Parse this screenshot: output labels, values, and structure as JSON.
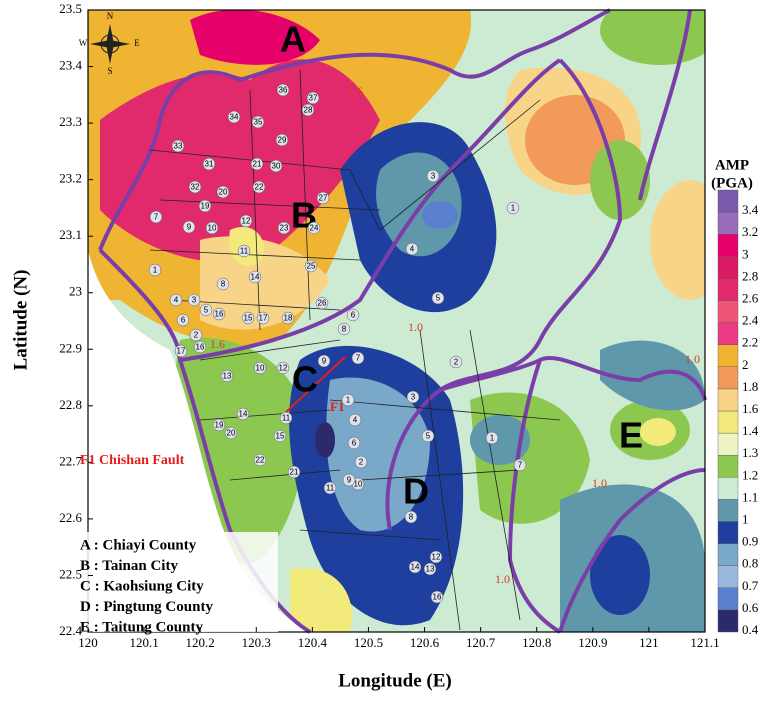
{
  "x_axis": {
    "label": "Longitude (E)",
    "lim": [
      120,
      121.1
    ],
    "ticks": [
      120,
      120.1,
      120.2,
      120.3,
      120.4,
      120.5,
      120.6,
      120.7,
      120.8,
      120.9,
      121,
      121.1
    ]
  },
  "y_axis": {
    "label": "Latitude (N)",
    "lim": [
      22.4,
      23.5
    ],
    "ticks": [
      22.4,
      22.5,
      22.6,
      22.7,
      22.8,
      22.9,
      23,
      23.1,
      23.2,
      23.3,
      23.4,
      23.5
    ]
  },
  "legend": {
    "title": [
      "AMP",
      "(PGA)"
    ],
    "levels": [
      {
        "value": 0.4,
        "color": "#2b2a6b"
      },
      {
        "value": 0.6,
        "color": "#5b7fcf"
      },
      {
        "value": 0.7,
        "color": "#9ab8de"
      },
      {
        "value": 0.8,
        "color": "#7aa8c8"
      },
      {
        "value": 0.9,
        "color": "#1e3f9e"
      },
      {
        "value": 1,
        "color": "#5f97ab"
      },
      {
        "value": 1.1,
        "color": "#cdebd2"
      },
      {
        "value": 1.2,
        "color": "#8cc850"
      },
      {
        "value": 1.3,
        "color": "#eef4c4"
      },
      {
        "value": 1.4,
        "color": "#f2ea7a"
      },
      {
        "value": 1.6,
        "color": "#f8d488"
      },
      {
        "value": 1.8,
        "color": "#f29a5a"
      },
      {
        "value": 2,
        "color": "#f0b433"
      },
      {
        "value": 2.2,
        "color": "#ec3a84"
      },
      {
        "value": 2.4,
        "color": "#ee5576"
      },
      {
        "value": 2.6,
        "color": "#e12a6c"
      },
      {
        "value": 2.8,
        "color": "#d81b62"
      },
      {
        "value": 3,
        "color": "#e6006a"
      },
      {
        "value": 3.2,
        "color": "#9a6bbd"
      },
      {
        "value": 3.4,
        "color": "#7a5aaa"
      }
    ]
  },
  "regions": [
    "A",
    "B",
    "C",
    "D",
    "E"
  ],
  "region_key": [
    "A : Chiayi County",
    "B : Tainan City",
    "C : Kaohsiung City",
    "D : Pingtung County",
    "E : Taitung County"
  ],
  "compass": [
    "N",
    "S",
    "E",
    "W"
  ],
  "fault_mark": "F1",
  "fault_legend": "F1  Chishan Fault",
  "contour_labels": [
    "1.6",
    "1.6",
    "1.6",
    "1.0",
    "1.0",
    "1.0",
    "1.0"
  ],
  "district_numbers": [
    36,
    37,
    28,
    34,
    35,
    29,
    31,
    21,
    30,
    33,
    32,
    20,
    22,
    19,
    7,
    27,
    24,
    9,
    10,
    12,
    23,
    11,
    1,
    14,
    25,
    26,
    8,
    4,
    3,
    6,
    5,
    16,
    15,
    17,
    18,
    2,
    3,
    1,
    4,
    5,
    17,
    16,
    13,
    10,
    12,
    14,
    11,
    19,
    20,
    15,
    22,
    21,
    9,
    8,
    6,
    7,
    3,
    1,
    4,
    6,
    5,
    2,
    10,
    11,
    9,
    8,
    12,
    14,
    13,
    16,
    1,
    7,
    2
  ]
}
